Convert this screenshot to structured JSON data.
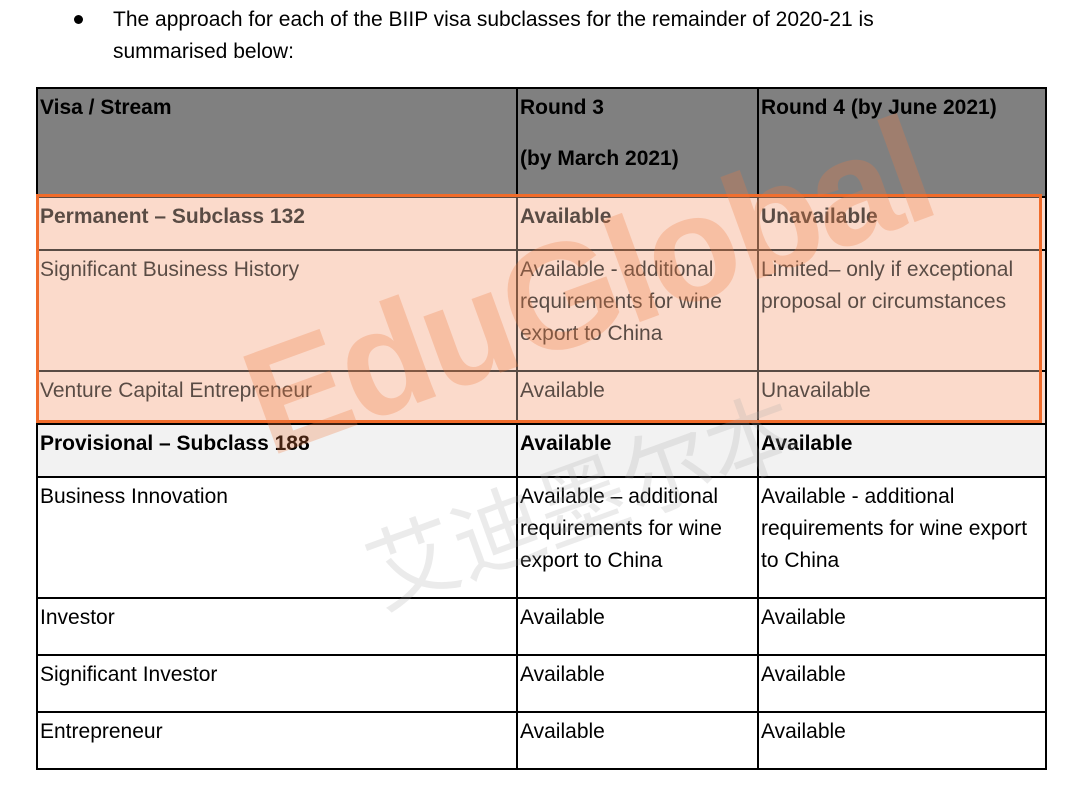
{
  "intro": {
    "bullet_text": "The approach for each of the BIIP visa subclasses for the remainder of 2020-21 is summarised below:"
  },
  "table": {
    "header": {
      "col1": "Visa / Stream",
      "col2_line1": "Round 3",
      "col2_line2": "(by March 2021)",
      "col3": "Round 4 (by June 2021)"
    },
    "rows": [
      {
        "stream": "Permanent – Subclass 132",
        "round3": "Available",
        "round4": "Unavailable"
      },
      {
        "stream": "Significant Business History",
        "round3": "Available - additional requirements for wine export to China",
        "round4": "Limited– only if exceptional proposal or circumstances"
      },
      {
        "stream": "Venture Capital Entrepreneur",
        "round3": "Available",
        "round4": "Unavailable"
      },
      {
        "stream": "Provisional – Subclass 188",
        "round3": "Available",
        "round4": "Available"
      },
      {
        "stream": "Business Innovation",
        "round3": "Available – additional requirements for wine export to China",
        "round4": "Available - additional requirements for wine export to China"
      },
      {
        "stream": "Investor",
        "round3": "Available",
        "round4": "Available"
      },
      {
        "stream": "Significant Investor",
        "round3": "Available",
        "round4": "Available"
      },
      {
        "stream": "Entrepreneur",
        "round3": "Available",
        "round4": "Available"
      }
    ]
  },
  "watermark": {
    "latin": "EduGlobal",
    "cjk": "艾迪墨尔本"
  },
  "colors": {
    "header_bg": "#808080",
    "highlight_border": "#f06b2a",
    "highlight_fill": "#f9dcd0",
    "subheader_bg": "#f2f2f2"
  }
}
